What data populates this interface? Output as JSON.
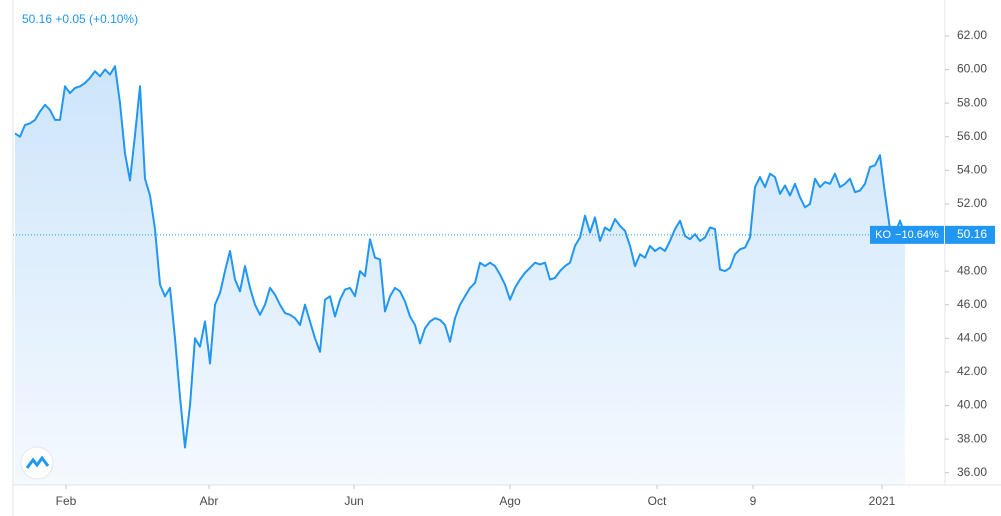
{
  "chart_data": {
    "type": "area",
    "header": "50.16 +0.05 (+0.10%)",
    "series": [
      {
        "name": "KO",
        "change": "−10.64%",
        "color": "#2196f3",
        "values": [
          56.2,
          56.0,
          56.7,
          56.8,
          57.0,
          57.5,
          57.9,
          57.6,
          57.0,
          57.0,
          59.0,
          58.6,
          58.9,
          59.0,
          59.2,
          59.5,
          59.9,
          59.6,
          60.0,
          59.7,
          60.2,
          58.0,
          55.0,
          53.4,
          56.1,
          59.0,
          53.5,
          52.5,
          50.5,
          47.2,
          46.5,
          47.0,
          44.0,
          40.5,
          37.5,
          40.0,
          44.0,
          43.5,
          45.0,
          42.5,
          46.0,
          46.7,
          48.0,
          49.2,
          47.5,
          46.8,
          48.3,
          47.0,
          46.0,
          45.4,
          46.0,
          47.0,
          46.6,
          46.0,
          45.5,
          45.4,
          45.2,
          44.8,
          46.0,
          45.0,
          44.0,
          43.2,
          46.3,
          46.5,
          45.3,
          46.3,
          46.9,
          47.0,
          46.5,
          48.0,
          47.7,
          49.9,
          48.8,
          48.7,
          45.6,
          46.5,
          47.0,
          46.8,
          46.2,
          45.3,
          44.8,
          43.7,
          44.6,
          45.0,
          45.2,
          45.1,
          44.8,
          43.8,
          45.2,
          46.0,
          46.5,
          47.0,
          47.3,
          48.5,
          48.3,
          48.5,
          48.3,
          47.8,
          47.2,
          46.3,
          47.0,
          47.5,
          47.9,
          48.2,
          48.5,
          48.4,
          48.5,
          47.5,
          47.6,
          48.0,
          48.3,
          48.5,
          49.5,
          50.0,
          51.3,
          50.3,
          51.2,
          49.8,
          50.6,
          50.4,
          51.1,
          50.7,
          50.4,
          49.5,
          48.3,
          49.0,
          48.8,
          49.5,
          49.2,
          49.4,
          49.2,
          49.8,
          50.5,
          51.0,
          50.1,
          49.9,
          50.2,
          49.8,
          50.0,
          50.6,
          50.5,
          48.1,
          48.0,
          48.2,
          49.0,
          49.3,
          49.4,
          50.0,
          53.0,
          53.6,
          53.0,
          53.8,
          53.6,
          52.6,
          53.1,
          52.5,
          53.2,
          52.4,
          51.8,
          52.0,
          53.5,
          53.0,
          53.3,
          53.2,
          53.8,
          53.0,
          53.2,
          53.5,
          52.7,
          52.8,
          53.2,
          54.2,
          54.3,
          54.9,
          52.6,
          50.5,
          50.2,
          51.0,
          50.16
        ]
      }
    ],
    "current_price": {
      "value": 50.16,
      "label": "50.16"
    },
    "xlim": [
      -0.4,
      186
    ],
    "xticks": [
      {
        "value": 10.2,
        "label": "Feb"
      },
      {
        "value": 38.8,
        "label": "Abr"
      },
      {
        "value": 67.8,
        "label": "Jun"
      },
      {
        "value": 99,
        "label": "Ago"
      },
      {
        "value": 128.4,
        "label": "Oct"
      },
      {
        "value": 147.6,
        "label": "9"
      },
      {
        "value": 173.4,
        "label": "2021"
      }
    ],
    "ylim": [
      35.27,
      64.14
    ],
    "yticks": [
      {
        "value": 36,
        "label": "36.00"
      },
      {
        "value": 38,
        "label": "38.00"
      },
      {
        "value": 40,
        "label": "40.00"
      },
      {
        "value": 42,
        "label": "42.00"
      },
      {
        "value": 44,
        "label": "44.00"
      },
      {
        "value": 46,
        "label": "46.00"
      },
      {
        "value": 48,
        "label": "48.00"
      },
      {
        "value": 50,
        "label": "50.00"
      },
      {
        "value": 52,
        "label": "52.00"
      },
      {
        "value": 54,
        "label": "54.00"
      },
      {
        "value": 56,
        "label": "56.00"
      },
      {
        "value": 58,
        "label": "58.00"
      },
      {
        "value": 60,
        "label": "60.00"
      },
      {
        "value": 62,
        "label": "62.00"
      }
    ]
  }
}
